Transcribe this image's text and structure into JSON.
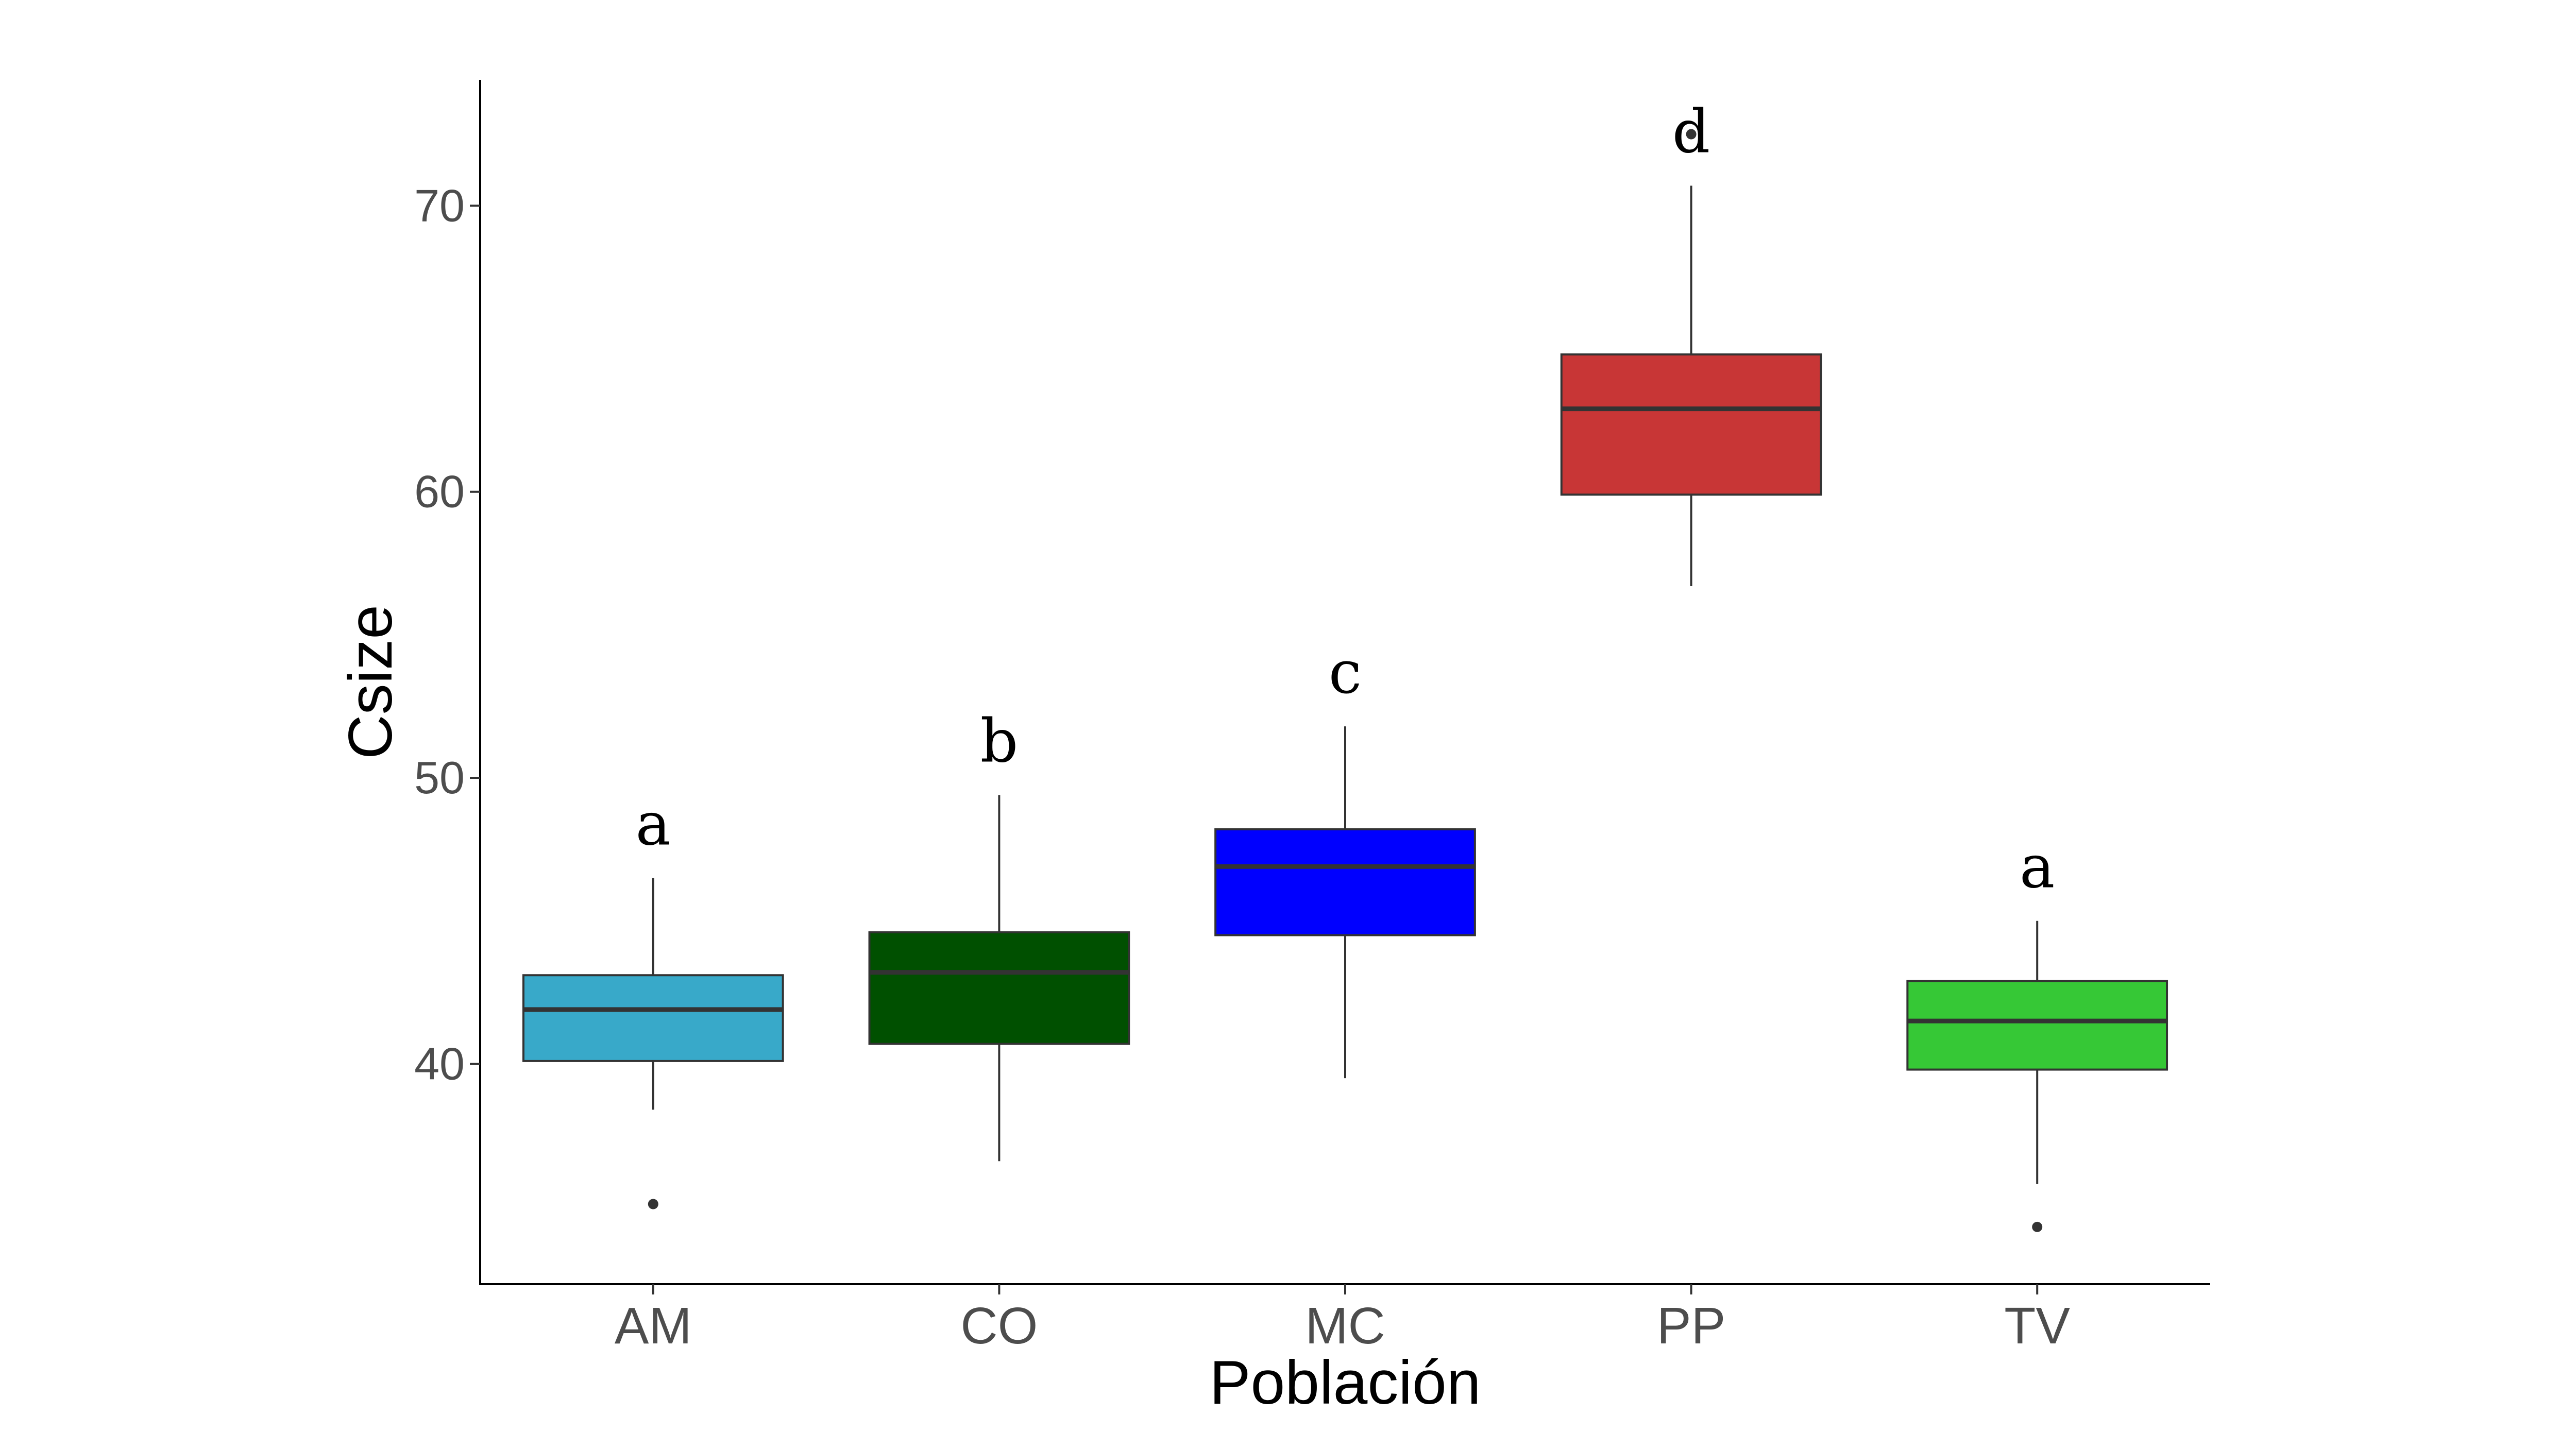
{
  "chart_data": {
    "type": "boxplot",
    "xlabel": "Población",
    "ylabel": "Csize",
    "ylim": [
      32.3,
      74.4
    ],
    "yticks": [
      40,
      50,
      60,
      70
    ],
    "grid": false,
    "legend": "none",
    "categories": [
      "AM",
      "CO",
      "MC",
      "PP",
      "TV"
    ],
    "boxes": [
      {
        "category": "AM",
        "min": 38.4,
        "q1": 40.1,
        "median": 41.9,
        "q3": 43.1,
        "max": 46.5,
        "outliers": [
          35.1
        ],
        "letter": "a",
        "color": "#38a9c9"
      },
      {
        "category": "CO",
        "min": 36.6,
        "q1": 40.7,
        "median": 43.2,
        "q3": 44.6,
        "max": 49.4,
        "outliers": [],
        "letter": "b",
        "color": "#005000"
      },
      {
        "category": "MC",
        "min": 39.5,
        "q1": 44.5,
        "median": 46.9,
        "q3": 48.2,
        "max": 51.8,
        "outliers": [],
        "letter": "c",
        "color": "#0000ff"
      },
      {
        "category": "PP",
        "min": 56.7,
        "q1": 59.9,
        "median": 62.9,
        "q3": 64.8,
        "max": 70.7,
        "outliers": [
          72.5
        ],
        "letter": "d",
        "color": "#c83636"
      },
      {
        "category": "TV",
        "min": 35.8,
        "q1": 39.8,
        "median": 41.5,
        "q3": 42.9,
        "max": 45.0,
        "outliers": [
          34.3
        ],
        "letter": "a",
        "color": "#36c836"
      }
    ]
  }
}
